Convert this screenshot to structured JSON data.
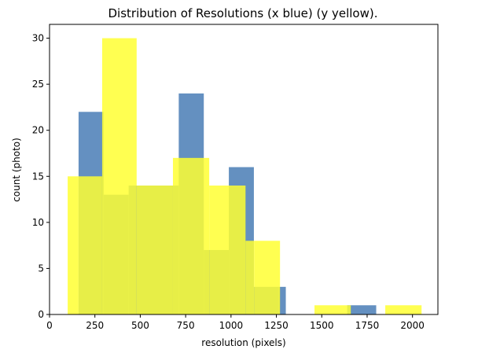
{
  "chart_data": {
    "type": "bar",
    "title": "Distribution of Resolutions (x blue) (y yellow).",
    "xlabel": "resolution (pixels)",
    "ylabel": "count (photo)",
    "xlim": [
      0,
      2140
    ],
    "ylim": [
      0,
      31.5
    ],
    "xticks": [
      0,
      250,
      500,
      750,
      1000,
      1250,
      1500,
      1750,
      2000
    ],
    "yticks": [
      0,
      5,
      10,
      15,
      20,
      25,
      30
    ],
    "grid": false,
    "series": [
      {
        "color": "#4f81b8",
        "opacity": 0.88,
        "bins": [
          {
            "x0": 160,
            "x1": 298,
            "count": 22
          },
          {
            "x0": 298,
            "x1": 436,
            "count": 13
          },
          {
            "x0": 436,
            "x1": 574,
            "count": 14
          },
          {
            "x0": 574,
            "x1": 712,
            "count": 14
          },
          {
            "x0": 712,
            "x1": 850,
            "count": 24
          },
          {
            "x0": 850,
            "x1": 988,
            "count": 7
          },
          {
            "x0": 988,
            "x1": 1126,
            "count": 16
          },
          {
            "x0": 1126,
            "x1": 1264,
            "count": 3
          },
          {
            "x0": 1264,
            "x1": 1302,
            "count": 3
          },
          {
            "x0": 1640,
            "x1": 1800,
            "count": 1
          }
        ]
      },
      {
        "color": "#ffff33",
        "opacity": 0.85,
        "bins": [
          {
            "x0": 100,
            "x1": 160,
            "count": 15
          },
          {
            "x0": 160,
            "x1": 290,
            "count": 15
          },
          {
            "x0": 290,
            "x1": 480,
            "count": 30
          },
          {
            "x0": 480,
            "x1": 680,
            "count": 14
          },
          {
            "x0": 680,
            "x1": 880,
            "count": 17
          },
          {
            "x0": 880,
            "x1": 1080,
            "count": 14
          },
          {
            "x0": 1080,
            "x1": 1130,
            "count": 8
          },
          {
            "x0": 1130,
            "x1": 1270,
            "count": 8
          },
          {
            "x0": 1460,
            "x1": 1660,
            "count": 1
          },
          {
            "x0": 1850,
            "x1": 2050,
            "count": 1
          }
        ]
      }
    ]
  }
}
